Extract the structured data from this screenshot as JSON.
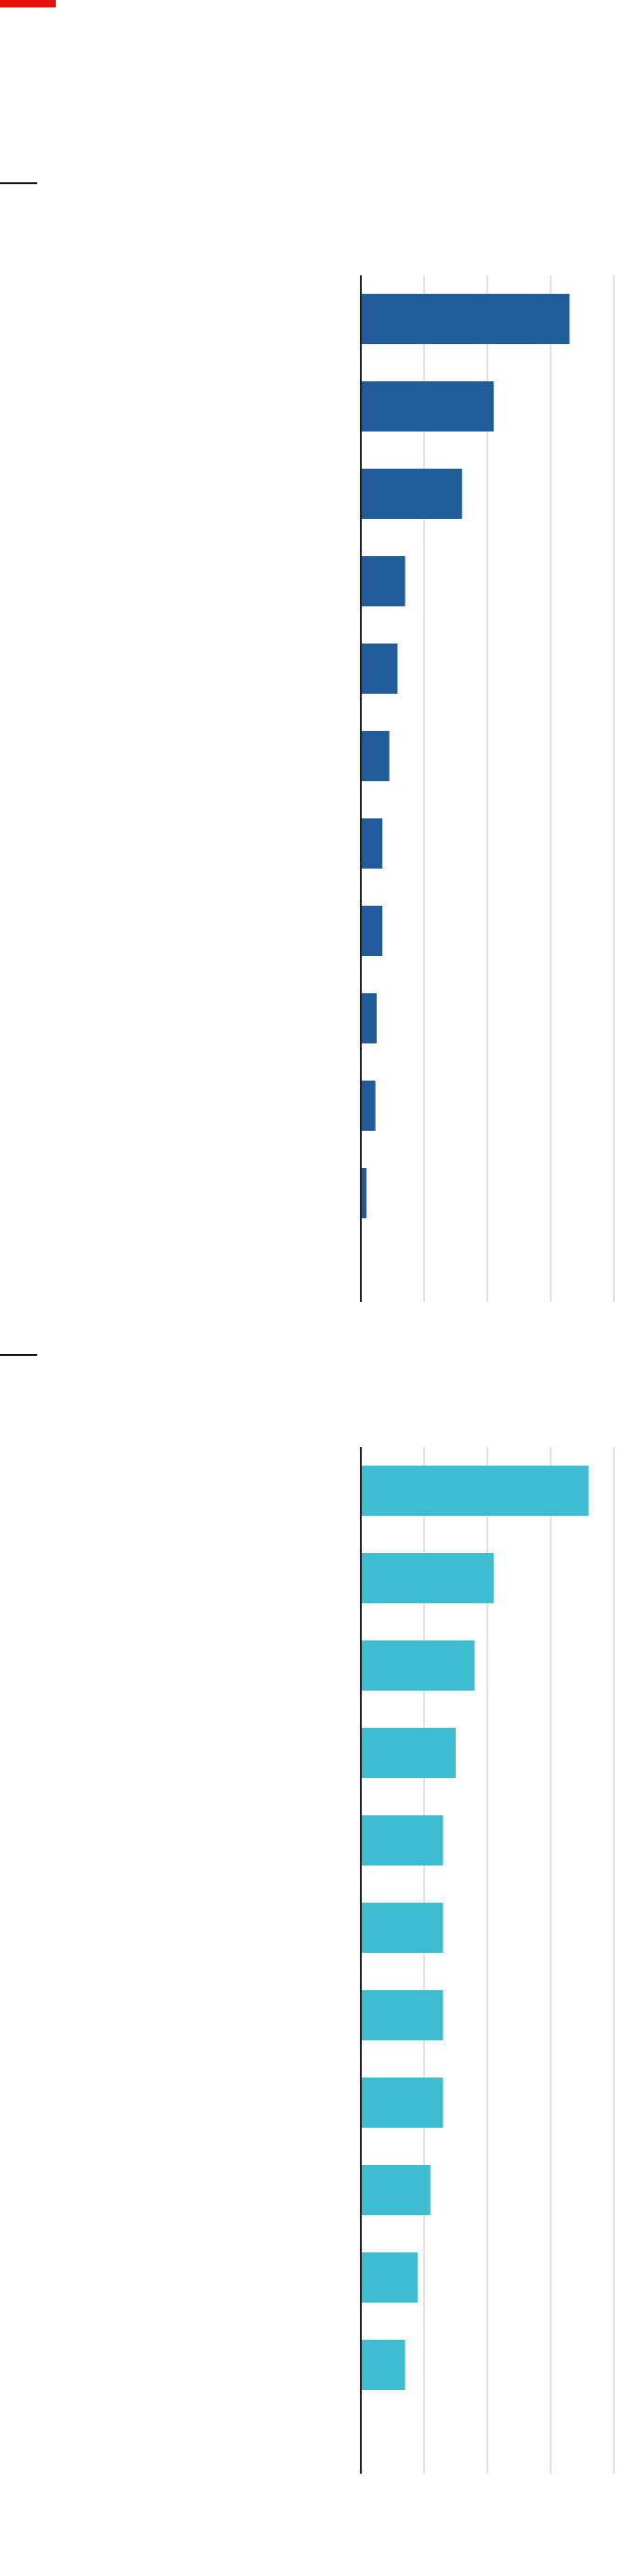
{
  "colors": {
    "accent": "#e3120b",
    "series_1": "#1f5c99",
    "series_2": "#3ebcd2"
  },
  "chart_data": [
    {
      "type": "bar",
      "orientation": "horizontal",
      "title": "",
      "categories": [
        "",
        "",
        "",
        "",
        "",
        "",
        "",
        "",
        "",
        "",
        "",
        ""
      ],
      "values": [
        33,
        21,
        16,
        7,
        5.8,
        4.5,
        3.4,
        3.4,
        2.5,
        2.3,
        0.9,
        0
      ],
      "xlim": [
        0,
        40
      ],
      "xticks": [
        0,
        10,
        20,
        30,
        40
      ],
      "tick_labels": [],
      "grid": true,
      "color": "#1f5c99"
    },
    {
      "type": "bar",
      "orientation": "horizontal",
      "title": "",
      "categories": [
        "",
        "",
        "",
        "",
        "",
        "",
        "",
        "",
        "",
        "",
        "",
        ""
      ],
      "values": [
        36,
        21,
        18,
        15,
        13,
        13,
        13,
        13,
        11,
        9,
        7,
        0
      ],
      "xlim": [
        0,
        40
      ],
      "xticks": [
        0,
        10,
        20,
        30,
        40
      ],
      "tick_labels": [],
      "grid": true,
      "color": "#3ebcd2"
    }
  ]
}
